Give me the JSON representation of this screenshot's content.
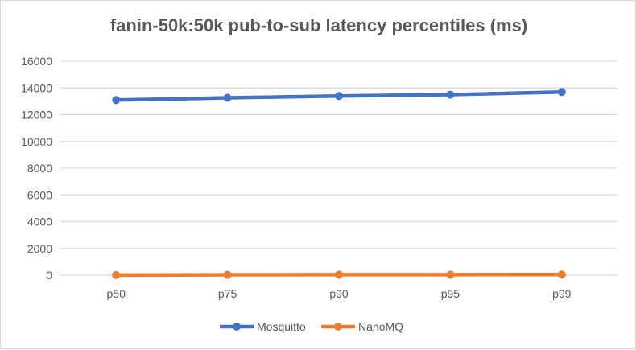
{
  "chart_data": {
    "type": "line",
    "title": "fanin-50k:50k pub-to-sub latency percentiles (ms)",
    "categories": [
      "p50",
      "p75",
      "p90",
      "p95",
      "p99"
    ],
    "series": [
      {
        "name": "Mosquitto",
        "values": [
          13100,
          13260,
          13400,
          13500,
          13700
        ],
        "color": "#4472C4"
      },
      {
        "name": "NanoMQ",
        "values": [
          10,
          30,
          40,
          40,
          45
        ],
        "color": "#ED7D31"
      }
    ],
    "ylim": [
      0,
      16000
    ],
    "yticks": [
      0,
      2000,
      4000,
      6000,
      8000,
      10000,
      12000,
      14000,
      16000
    ],
    "grid": true,
    "legend": "bottom",
    "xlabel": "",
    "ylabel": ""
  }
}
